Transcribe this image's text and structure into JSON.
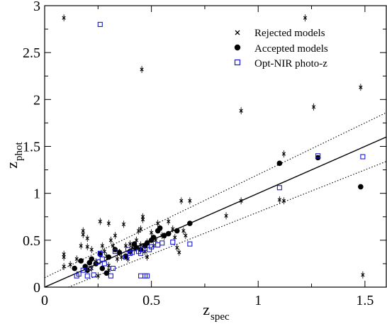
{
  "chart_data": {
    "type": "scatter",
    "xlabel": "z",
    "xlabel_sub": "spec",
    "ylabel": "z",
    "ylabel_sub": "phot",
    "xlim": [
      0,
      1.6
    ],
    "ylim": [
      0,
      3
    ],
    "xticks": [
      0,
      0.5,
      1,
      1.5
    ],
    "xtick_labels": [
      "0",
      "0.5",
      "1",
      "1.5"
    ],
    "yticks": [
      0,
      0.5,
      1,
      1.5,
      2,
      2.5,
      3
    ],
    "ytick_labels": [
      "0",
      "0.5",
      "1",
      "1.5",
      "2",
      "2.5",
      "3"
    ],
    "legend_position": "top-right",
    "reference_lines": [
      {
        "style": "solid",
        "points": [
          [
            0,
            0
          ],
          [
            1.6,
            1.6
          ]
        ]
      },
      {
        "style": "dotted",
        "points": [
          [
            0,
            0.1
          ],
          [
            1.6,
            1.86
          ]
        ]
      },
      {
        "style": "dotted",
        "points": [
          [
            0,
            -0.1
          ],
          [
            1.6,
            1.34
          ]
        ]
      }
    ],
    "series": [
      {
        "name": "Rejected models",
        "marker": "x",
        "color": "#000000",
        "points": [
          [
            0.09,
            2.87
          ],
          [
            1.22,
            2.87
          ],
          [
            0.455,
            2.32
          ],
          [
            0.92,
            1.88
          ],
          [
            1.26,
            1.92
          ],
          [
            1.48,
            2.13
          ],
          [
            1.12,
            1.42
          ],
          [
            1.1,
            0.93
          ],
          [
            1.12,
            0.92
          ],
          [
            1.49,
            0.13
          ],
          [
            0.92,
            0.92
          ],
          [
            0.85,
            0.76
          ],
          [
            0.64,
            0.92
          ],
          [
            0.68,
            0.92
          ],
          [
            0.09,
            0.35
          ],
          [
            0.09,
            0.22
          ],
          [
            0.09,
            0.32
          ],
          [
            0.12,
            0.24
          ],
          [
            0.15,
            0.3
          ],
          [
            0.17,
            0.44
          ],
          [
            0.18,
            0.6
          ],
          [
            0.18,
            0.56
          ],
          [
            0.2,
            0.52
          ],
          [
            0.2,
            0.43
          ],
          [
            0.22,
            0.4
          ],
          [
            0.22,
            0.2
          ],
          [
            0.24,
            0.27
          ],
          [
            0.26,
            0.7
          ],
          [
            0.27,
            0.44
          ],
          [
            0.28,
            0.38
          ],
          [
            0.29,
            0.33
          ],
          [
            0.3,
            0.23
          ],
          [
            0.3,
            0.18
          ],
          [
            0.3,
            0.68
          ],
          [
            0.31,
            0.5
          ],
          [
            0.32,
            0.44
          ],
          [
            0.33,
            0.55
          ],
          [
            0.34,
            0.3
          ],
          [
            0.35,
            0.37
          ],
          [
            0.37,
            0.67
          ],
          [
            0.38,
            0.44
          ],
          [
            0.4,
            0.46
          ],
          [
            0.41,
            0.42
          ],
          [
            0.42,
            0.4
          ],
          [
            0.43,
            0.5
          ],
          [
            0.44,
            0.6
          ],
          [
            0.45,
            0.62
          ],
          [
            0.45,
            0.45
          ],
          [
            0.46,
            0.75
          ],
          [
            0.46,
            0.72
          ],
          [
            0.47,
            0.38
          ],
          [
            0.48,
            0.48
          ],
          [
            0.48,
            0.32
          ],
          [
            0.5,
            0.58
          ],
          [
            0.51,
            0.44
          ],
          [
            0.52,
            0.5
          ],
          [
            0.53,
            0.68
          ],
          [
            0.54,
            0.62
          ],
          [
            0.55,
            0.55
          ],
          [
            0.56,
            0.54
          ],
          [
            0.58,
            0.7
          ],
          [
            0.6,
            0.62
          ],
          [
            0.61,
            0.53
          ],
          [
            0.62,
            0.42
          ],
          [
            0.63,
            0.37
          ],
          [
            0.65,
            0.6
          ],
          [
            0.66,
            0.55
          ],
          [
            0.39,
            0.3
          ],
          [
            0.36,
            0.32
          ],
          [
            0.25,
            0.12
          ]
        ]
      },
      {
        "name": "Accepted models",
        "marker": "filled-circle",
        "color": "#000000",
        "points": [
          [
            0.14,
            0.2
          ],
          [
            0.17,
            0.28
          ],
          [
            0.19,
            0.22
          ],
          [
            0.2,
            0.18
          ],
          [
            0.21,
            0.26
          ],
          [
            0.22,
            0.3
          ],
          [
            0.24,
            0.25
          ],
          [
            0.26,
            0.35
          ],
          [
            0.27,
            0.2
          ],
          [
            0.29,
            0.15
          ],
          [
            0.3,
            0.32
          ],
          [
            0.33,
            0.4
          ],
          [
            0.35,
            0.37
          ],
          [
            0.38,
            0.33
          ],
          [
            0.4,
            0.38
          ],
          [
            0.42,
            0.46
          ],
          [
            0.43,
            0.42
          ],
          [
            0.45,
            0.4
          ],
          [
            0.47,
            0.44
          ],
          [
            0.48,
            0.47
          ],
          [
            0.5,
            0.5
          ],
          [
            0.51,
            0.53
          ],
          [
            0.53,
            0.6
          ],
          [
            0.54,
            0.63
          ],
          [
            0.56,
            0.55
          ],
          [
            0.58,
            0.57
          ],
          [
            0.62,
            0.6
          ],
          [
            0.68,
            0.68
          ],
          [
            1.1,
            1.32
          ],
          [
            1.28,
            1.38
          ],
          [
            1.48,
            1.07
          ]
        ]
      },
      {
        "name": "Opt-NIR photo-z",
        "marker": "open-square",
        "color": "#1a1ad6",
        "points": [
          [
            0.26,
            2.8
          ],
          [
            0.15,
            0.12
          ],
          [
            0.16,
            0.14
          ],
          [
            0.18,
            0.18
          ],
          [
            0.2,
            0.12
          ],
          [
            0.21,
            0.2
          ],
          [
            0.23,
            0.13
          ],
          [
            0.25,
            0.27
          ],
          [
            0.26,
            0.36
          ],
          [
            0.27,
            0.3
          ],
          [
            0.28,
            0.25
          ],
          [
            0.31,
            0.12
          ],
          [
            0.32,
            0.2
          ],
          [
            0.33,
            0.38
          ],
          [
            0.38,
            0.32
          ],
          [
            0.39,
            0.4
          ],
          [
            0.4,
            0.36
          ],
          [
            0.41,
            0.37
          ],
          [
            0.44,
            0.38
          ],
          [
            0.45,
            0.36
          ],
          [
            0.46,
            0.4
          ],
          [
            0.45,
            0.12
          ],
          [
            0.47,
            0.12
          ],
          [
            0.48,
            0.12
          ],
          [
            0.49,
            0.4
          ],
          [
            0.5,
            0.43
          ],
          [
            0.53,
            0.45
          ],
          [
            0.55,
            0.47
          ],
          [
            0.6,
            0.48
          ],
          [
            0.68,
            0.46
          ],
          [
            1.1,
            1.06
          ],
          [
            1.28,
            1.4
          ],
          [
            1.49,
            1.39
          ]
        ]
      }
    ]
  }
}
